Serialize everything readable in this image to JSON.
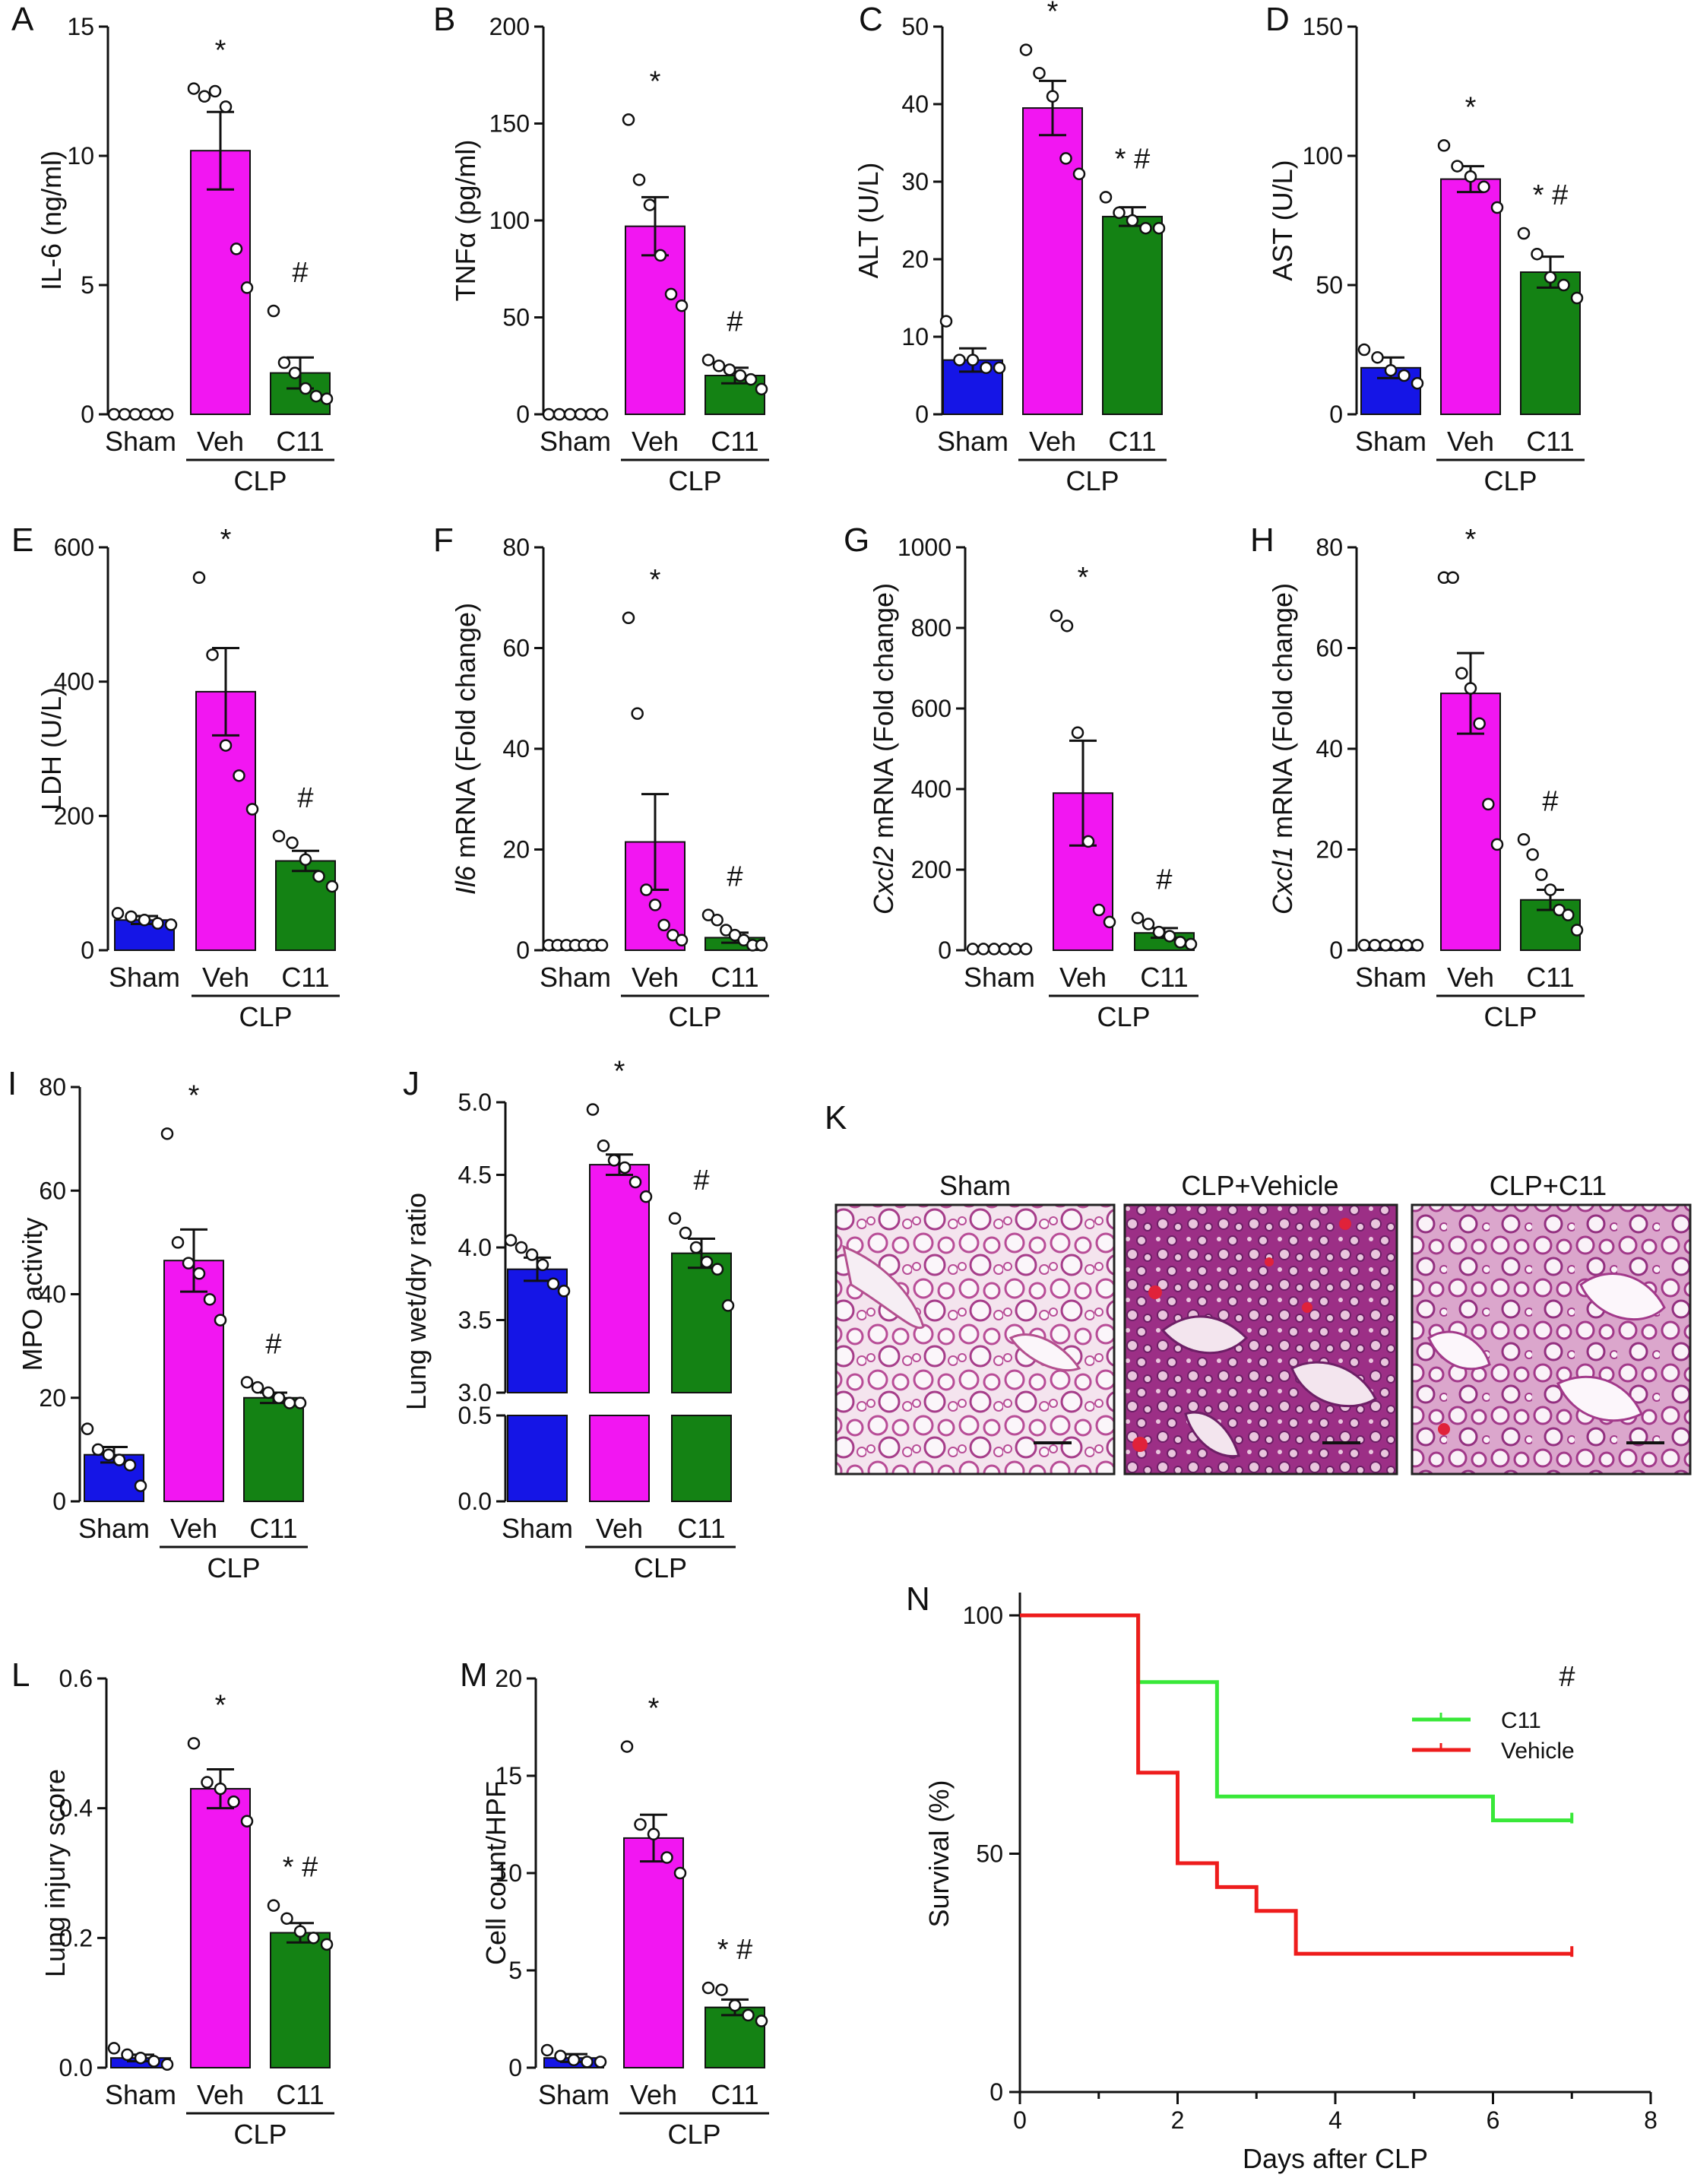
{
  "figure": {
    "colors": {
      "sham": "#1515e6",
      "veh": "#f216f2",
      "c11": "#148214",
      "c11_line": "#38e838",
      "vehicle_line": "#ee1c1c",
      "axis": "#111111"
    },
    "group_label": "CLP"
  },
  "chart_data": [
    {
      "panel": "A",
      "type": "bar",
      "ylabel": "IL-6 (ng/ml)",
      "ylabel_italic": "",
      "ylim": [
        0,
        15
      ],
      "yticks": [
        0,
        5,
        10,
        15
      ],
      "categories": [
        "Sham",
        "Veh",
        "C11"
      ],
      "group_label": "CLP",
      "values": [
        0,
        10.2,
        1.6
      ],
      "errors": [
        0,
        1.5,
        0.6
      ],
      "points": [
        [
          0,
          0,
          0,
          0,
          0,
          0
        ],
        [
          12.6,
          12.3,
          12.5,
          11.9,
          6.4,
          4.9
        ],
        [
          4.0,
          2.0,
          1.6,
          1.0,
          0.7,
          0.6
        ]
      ],
      "annotations": [
        "",
        "*",
        "#"
      ]
    },
    {
      "panel": "B",
      "type": "bar",
      "ylabel": "TNFα (pg/ml)",
      "ylabel_italic": "",
      "ylim": [
        0,
        200
      ],
      "yticks": [
        0,
        50,
        100,
        150,
        200
      ],
      "categories": [
        "Sham",
        "Veh",
        "C11"
      ],
      "group_label": "CLP",
      "values": [
        0,
        97,
        20
      ],
      "errors": [
        0,
        15,
        4
      ],
      "points": [
        [
          0,
          0,
          0,
          0,
          0,
          0
        ],
        [
          152,
          121,
          108,
          82,
          62,
          56
        ],
        [
          28,
          25,
          23,
          20,
          18,
          13
        ]
      ],
      "annotations": [
        "",
        "*",
        "#"
      ]
    },
    {
      "panel": "C",
      "type": "bar",
      "ylabel": "ALT (U/L)",
      "ylabel_italic": "",
      "ylim": [
        0,
        50
      ],
      "yticks": [
        0,
        10,
        20,
        30,
        40,
        50
      ],
      "categories": [
        "Sham",
        "Veh",
        "C11"
      ],
      "group_label": "CLP",
      "values": [
        7.0,
        39.5,
        25.5
      ],
      "errors": [
        1.5,
        3.5,
        1.2
      ],
      "points": [
        [
          12,
          7,
          7,
          6,
          6
        ],
        [
          47,
          44,
          41,
          33,
          31
        ],
        [
          28,
          26,
          25,
          24,
          24
        ]
      ],
      "annotations": [
        "",
        "*",
        "* #"
      ]
    },
    {
      "panel": "D",
      "type": "bar",
      "ylabel": "AST (U/L)",
      "ylabel_italic": "",
      "ylim": [
        0,
        150
      ],
      "yticks": [
        0,
        50,
        100,
        150
      ],
      "categories": [
        "Sham",
        "Veh",
        "C11"
      ],
      "group_label": "CLP",
      "values": [
        18,
        91,
        55
      ],
      "errors": [
        4,
        5,
        6
      ],
      "points": [
        [
          25,
          22,
          17,
          15,
          12
        ],
        [
          104,
          96,
          92,
          88,
          80
        ],
        [
          70,
          62,
          53,
          50,
          45
        ]
      ],
      "annotations": [
        "",
        "*",
        "* #"
      ]
    },
    {
      "panel": "E",
      "type": "bar",
      "ylabel": "LDH (U/L)",
      "ylabel_italic": "",
      "ylim": [
        0,
        600
      ],
      "yticks": [
        0,
        200,
        400,
        600
      ],
      "categories": [
        "Sham",
        "Veh",
        "C11"
      ],
      "group_label": "CLP",
      "values": [
        45,
        385,
        133
      ],
      "errors": [
        6,
        65,
        15
      ],
      "points": [
        [
          55,
          50,
          45,
          40,
          38
        ],
        [
          555,
          440,
          305,
          260,
          210
        ],
        [
          170,
          160,
          135,
          110,
          95
        ]
      ],
      "annotations": [
        "",
        "*",
        "#"
      ]
    },
    {
      "panel": "F",
      "type": "bar",
      "ylabel": " mRNA (Fold change)",
      "ylabel_italic": "Il6",
      "ylim": [
        0,
        80
      ],
      "yticks": [
        0,
        20,
        40,
        60,
        80
      ],
      "categories": [
        "Sham",
        "Veh",
        "C11"
      ],
      "group_label": "CLP",
      "values": [
        1,
        21.5,
        2.5
      ],
      "errors": [
        0.3,
        9.5,
        1.0
      ],
      "points": [
        [
          1,
          1,
          1,
          1,
          1,
          1,
          1
        ],
        [
          66,
          47,
          12,
          9,
          5,
          3,
          2
        ],
        [
          7,
          6,
          4,
          3,
          2,
          1,
          1
        ]
      ],
      "annotations": [
        "",
        "*",
        "#"
      ]
    },
    {
      "panel": "G",
      "type": "bar",
      "ylabel": " mRNA (Fold change)",
      "ylabel_italic": "Cxcl2",
      "ylim": [
        0,
        1000
      ],
      "yticks": [
        0,
        200,
        400,
        600,
        800,
        1000
      ],
      "categories": [
        "Sham",
        "Veh",
        "C11"
      ],
      "group_label": "CLP",
      "values": [
        3,
        390,
        43
      ],
      "errors": [
        1,
        130,
        12
      ],
      "points": [
        [
          3,
          3,
          3,
          3,
          3,
          3
        ],
        [
          830,
          805,
          540,
          270,
          100,
          70
        ],
        [
          80,
          65,
          45,
          35,
          20,
          15
        ]
      ],
      "annotations": [
        "",
        "*",
        "#"
      ]
    },
    {
      "panel": "H",
      "type": "bar",
      "ylabel": " mRNA (Fold change)",
      "ylabel_italic": "Cxcl1",
      "ylim": [
        0,
        80
      ],
      "yticks": [
        0,
        20,
        40,
        60,
        80
      ],
      "categories": [
        "Sham",
        "Veh",
        "C11"
      ],
      "group_label": "CLP",
      "values": [
        1,
        51,
        10
      ],
      "errors": [
        0.3,
        8,
        2
      ],
      "points": [
        [
          1,
          1,
          1,
          1,
          1,
          1
        ],
        [
          74,
          74,
          55,
          52,
          45,
          29,
          21
        ],
        [
          22,
          19,
          15,
          12,
          8,
          7,
          4
        ]
      ],
      "annotations": [
        "",
        "*",
        "#"
      ]
    },
    {
      "panel": "I",
      "type": "bar",
      "ylabel": "MPO activity",
      "ylabel_italic": "",
      "ylim": [
        0,
        80
      ],
      "yticks": [
        0,
        20,
        40,
        60,
        80
      ],
      "categories": [
        "Sham",
        "Veh",
        "C11"
      ],
      "group_label": "CLP",
      "values": [
        9,
        46.5,
        20
      ],
      "errors": [
        1.5,
        6,
        1
      ],
      "points": [
        [
          14,
          10,
          9,
          8,
          7,
          3
        ],
        [
          71,
          50,
          46,
          44,
          39,
          35
        ],
        [
          23,
          22,
          21,
          20,
          19,
          19
        ]
      ],
      "annotations": [
        "",
        "*",
        "#"
      ]
    },
    {
      "panel": "J",
      "type": "bar",
      "ylabel": "Lung wet/dry ratio",
      "ylabel_italic": "",
      "axis_break": true,
      "ylim_upper": [
        3.0,
        5.0
      ],
      "yticks_upper": [
        3.0,
        3.5,
        4.0,
        4.5,
        5.0
      ],
      "ylim_lower": [
        0.0,
        0.5
      ],
      "yticks_lower": [
        0.0,
        0.5
      ],
      "categories": [
        "Sham",
        "Veh",
        "C11"
      ],
      "group_label": "CLP",
      "values": [
        3.85,
        4.57,
        3.96
      ],
      "errors": [
        0.08,
        0.07,
        0.1
      ],
      "points": [
        [
          4.05,
          4.0,
          3.95,
          3.88,
          3.75,
          3.7
        ],
        [
          4.95,
          4.7,
          4.6,
          4.55,
          4.45,
          4.35
        ],
        [
          4.2,
          4.1,
          4.0,
          3.9,
          3.85,
          3.6
        ]
      ],
      "annotations": [
        "",
        "*",
        "#"
      ]
    },
    {
      "panel": "L",
      "type": "bar",
      "ylabel": "Lung injury score",
      "ylabel_italic": "",
      "ylim": [
        0,
        0.6
      ],
      "yticks": [
        0.0,
        0.2,
        0.4,
        0.6
      ],
      "categories": [
        "Sham",
        "Veh",
        "C11"
      ],
      "group_label": "CLP",
      "values": [
        0.015,
        0.43,
        0.208
      ],
      "errors": [
        0.005,
        0.03,
        0.015
      ],
      "points": [
        [
          0.03,
          0.02,
          0.015,
          0.01,
          0.005
        ],
        [
          0.5,
          0.44,
          0.43,
          0.41,
          0.38
        ],
        [
          0.25,
          0.23,
          0.21,
          0.2,
          0.19
        ]
      ],
      "annotations": [
        "",
        "*",
        "* #"
      ]
    },
    {
      "panel": "M",
      "type": "bar",
      "ylabel": "Cell count/HPF",
      "ylabel_italic": "",
      "ylim": [
        0,
        20
      ],
      "yticks": [
        0,
        5,
        10,
        15,
        20
      ],
      "categories": [
        "Sham",
        "Veh",
        "C11"
      ],
      "group_label": "CLP",
      "values": [
        0.5,
        11.8,
        3.1
      ],
      "errors": [
        0.2,
        1.2,
        0.4
      ],
      "points": [
        [
          0.9,
          0.6,
          0.4,
          0.3,
          0.3
        ],
        [
          16.5,
          12.5,
          12,
          10.8,
          10
        ],
        [
          4.1,
          4.0,
          3.2,
          2.7,
          2.4
        ]
      ],
      "annotations": [
        "",
        "*",
        "* #"
      ]
    },
    {
      "panel": "N",
      "type": "line",
      "xlabel": "Days after CLP",
      "ylabel": "Survival (%)",
      "xlim": [
        0,
        8
      ],
      "xticks": [
        0,
        2,
        4,
        6,
        8
      ],
      "ylim": [
        0,
        100
      ],
      "yticks": [
        0,
        50,
        100
      ],
      "series": [
        {
          "name": "C11",
          "color": "#38e838",
          "x": [
            0,
            1.5,
            1.5,
            2.5,
            2.5,
            6.0,
            6.0,
            7.0
          ],
          "y": [
            100,
            100,
            86,
            86,
            62,
            62,
            57,
            57
          ]
        },
        {
          "name": "Vehicle",
          "color": "#ee1c1c",
          "x": [
            0,
            1.5,
            1.5,
            2.0,
            2.0,
            2.5,
            2.5,
            3.0,
            3.0,
            3.5,
            3.5,
            7.0
          ],
          "y": [
            100,
            100,
            67,
            67,
            48,
            48,
            43,
            43,
            38,
            38,
            29,
            29
          ]
        }
      ],
      "annotations": [
        "#"
      ]
    }
  ],
  "histology": {
    "panel": "K",
    "titles": [
      "Sham",
      "CLP+Vehicle",
      "CLP+C11"
    ]
  }
}
